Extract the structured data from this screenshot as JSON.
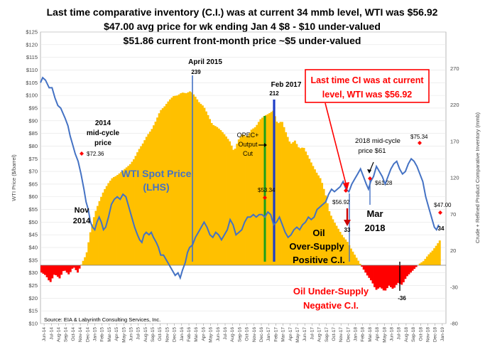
{
  "titles": {
    "line1": "Last time comparative inventory (C.I.) was at current  34 mmb level, WTI was $56.92",
    "line2": "$47.00 avg price for wk ending Jan 4 $8 - $10 under-valued",
    "line3": "$51.86 current front-month price ~$5 under-valued"
  },
  "chart_data": {
    "type": "bar+line",
    "source": "Source:  EIA & Labyrinth Consulting  Services, Inc.",
    "y_left": {
      "label": "WTI Price ($/barrel)",
      "range": [
        10,
        125
      ],
      "ticks": [
        "$10",
        "$15",
        "$20",
        "$25",
        "$30",
        "$35",
        "$40",
        "$45",
        "$50",
        "$55",
        "$60",
        "$65",
        "$70",
        "$75",
        "$80",
        "$85",
        "$90",
        "$95",
        "$100",
        "$105",
        "$110",
        "$115",
        "$120",
        "$125"
      ]
    },
    "y_right": {
      "label": "Crude + Refined Product  Comparative Inventory (mmb)",
      "range": [
        -80,
        320
      ],
      "ticks": [
        "-80",
        "-30",
        "20",
        "70",
        "120",
        "170",
        "220",
        "270"
      ]
    },
    "x_ticks": [
      "Jun-14",
      "Jul-14",
      "Aug-14",
      "Sep-14",
      "Oct-14",
      "Nov-14",
      "Dec-14",
      "Jan-15",
      "Feb-15",
      "Mar-15",
      "Apr-15",
      "May-15",
      "Jun-15",
      "Jul-15",
      "Aug-15",
      "Sep-15",
      "Oct-15",
      "Nov-15",
      "Dec-15",
      "Jan-16",
      "Feb-16",
      "Mar-16",
      "Apr-16",
      "May-16",
      "Jun-16",
      "Jul-16",
      "Aug-16",
      "Sep-16",
      "Oct-16",
      "Nov-16",
      "Dec-16",
      "Jan-17",
      "Feb-17",
      "Mar-17",
      "Apr-17",
      "May-17",
      "Jun-17",
      "Jul-17",
      "Aug-17",
      "Sep-17",
      "Oct-17",
      "Nov-17",
      "Dec-17",
      "Jan-18",
      "Feb-18",
      "Mar-18",
      "Apr-18",
      "May-18",
      "Jun-18",
      "Jul-18",
      "Aug-18",
      "Sep-18",
      "Oct-18",
      "Nov-18",
      "Dec-18",
      "Jan-19"
    ],
    "series": [
      {
        "name": "Comparative Inventory",
        "axis": "right",
        "color": "#ffc000",
        "negative_color": "#ff0000",
        "key_points": [
          [
            0,
            -10
          ],
          [
            0.6,
            -14
          ],
          [
            1.2,
            -24
          ],
          [
            1.8,
            -12
          ],
          [
            2.5,
            -18
          ],
          [
            3.1,
            -6
          ],
          [
            3.8,
            -13
          ],
          [
            4.4,
            -2
          ],
          [
            5.0,
            -10
          ],
          [
            5.6,
            3
          ],
          [
            6.2,
            15
          ],
          [
            6.8,
            48
          ],
          [
            7.4,
            72
          ],
          [
            8.0,
            88
          ],
          [
            8.6,
            102
          ],
          [
            9.2,
            112
          ],
          [
            9.8,
            120
          ],
          [
            10.4,
            123
          ],
          [
            11.0,
            128
          ],
          [
            11.6,
            133
          ],
          [
            12.2,
            138
          ],
          [
            12.8,
            146
          ],
          [
            13.4,
            158
          ],
          [
            14.0,
            167
          ],
          [
            14.6,
            178
          ],
          [
            15.2,
            186
          ],
          [
            15.8,
            198
          ],
          [
            16.4,
            212
          ],
          [
            17.0,
            218
          ],
          [
            17.6,
            226
          ],
          [
            18.2,
            232
          ],
          [
            18.8,
            233
          ],
          [
            19.4,
            237
          ],
          [
            20.0,
            236
          ],
          [
            20.6,
            239
          ],
          [
            21.2,
            232
          ],
          [
            21.8,
            223
          ],
          [
            22.4,
            218
          ],
          [
            23.0,
            206
          ],
          [
            23.6,
            193
          ],
          [
            24.2,
            190
          ],
          [
            24.8,
            185
          ],
          [
            25.4,
            178
          ],
          [
            26.0,
            170
          ],
          [
            26.6,
            156
          ],
          [
            27.2,
            172
          ],
          [
            27.8,
            180
          ],
          [
            28.4,
            176
          ],
          [
            29.0,
            186
          ],
          [
            29.6,
            190
          ],
          [
            30.2,
            200
          ],
          [
            30.8,
            205
          ],
          [
            31.4,
            208
          ],
          [
            32.0,
            212
          ],
          [
            32.6,
            194
          ],
          [
            33.2,
            198
          ],
          [
            33.8,
            181
          ],
          [
            34.4,
            166
          ],
          [
            35.0,
            171
          ],
          [
            35.6,
            160
          ],
          [
            36.2,
            162
          ],
          [
            36.8,
            150
          ],
          [
            37.4,
            138
          ],
          [
            38.0,
            127
          ],
          [
            38.6,
            118
          ],
          [
            39.2,
            98
          ],
          [
            39.8,
            72
          ],
          [
            40.4,
            60
          ],
          [
            41.0,
            50
          ],
          [
            41.6,
            40
          ],
          [
            42.2,
            33
          ],
          [
            42.8,
            22
          ],
          [
            43.4,
            12
          ],
          [
            44.0,
            2
          ],
          [
            44.5,
            -6
          ],
          [
            45.0,
            -14
          ],
          [
            45.6,
            -22
          ],
          [
            46.2,
            -34
          ],
          [
            46.8,
            -30
          ],
          [
            47.4,
            -36
          ],
          [
            48.0,
            -28
          ],
          [
            48.6,
            -33
          ],
          [
            49.2,
            -24
          ],
          [
            49.8,
            -27
          ],
          [
            50.4,
            -16
          ],
          [
            51.0,
            -10
          ],
          [
            51.6,
            -4
          ],
          [
            52.2,
            2
          ],
          [
            52.8,
            6
          ],
          [
            53.4,
            14
          ],
          [
            54.0,
            20
          ],
          [
            54.6,
            28
          ],
          [
            55.0,
            34
          ]
        ]
      },
      {
        "name": "WTI Spot Price (LHS)",
        "axis": "left",
        "color": "#4472c4",
        "key_points": [
          [
            0,
            105
          ],
          [
            0.3,
            107
          ],
          [
            0.7,
            106
          ],
          [
            1.2,
            103
          ],
          [
            1.6,
            103
          ],
          [
            2.0,
            99
          ],
          [
            2.4,
            96
          ],
          [
            2.8,
            95
          ],
          [
            3.1,
            93
          ],
          [
            3.4,
            91
          ],
          [
            3.8,
            88
          ],
          [
            4.1,
            84
          ],
          [
            4.5,
            80
          ],
          [
            4.8,
            77
          ],
          [
            5.2,
            74
          ],
          [
            5.6,
            69
          ],
          [
            6.0,
            63
          ],
          [
            6.3,
            58
          ],
          [
            6.6,
            55
          ],
          [
            6.9,
            50
          ],
          [
            7.2,
            48
          ],
          [
            7.5,
            47
          ],
          [
            7.8,
            50
          ],
          [
            8.1,
            52
          ],
          [
            8.4,
            50
          ],
          [
            8.7,
            47
          ],
          [
            9.0,
            48
          ],
          [
            9.4,
            52
          ],
          [
            9.8,
            57
          ],
          [
            10.2,
            59
          ],
          [
            10.6,
            60
          ],
          [
            11.0,
            59
          ],
          [
            11.4,
            61
          ],
          [
            11.8,
            60
          ],
          [
            12.2,
            56
          ],
          [
            12.6,
            52
          ],
          [
            13.0,
            48
          ],
          [
            13.4,
            45
          ],
          [
            13.7,
            43
          ],
          [
            14.0,
            42
          ],
          [
            14.3,
            45
          ],
          [
            14.6,
            46
          ],
          [
            15.0,
            45
          ],
          [
            15.3,
            46
          ],
          [
            15.6,
            44
          ],
          [
            16.0,
            42
          ],
          [
            16.3,
            40
          ],
          [
            16.6,
            37
          ],
          [
            17.0,
            37
          ],
          [
            17.4,
            35
          ],
          [
            17.8,
            33
          ],
          [
            18.2,
            31
          ],
          [
            18.6,
            29
          ],
          [
            19.0,
            30
          ],
          [
            19.3,
            28
          ],
          [
            19.6,
            31
          ],
          [
            20.0,
            34
          ],
          [
            20.3,
            38
          ],
          [
            20.6,
            40
          ],
          [
            21.0,
            41
          ],
          [
            21.4,
            44
          ],
          [
            21.8,
            46
          ],
          [
            22.2,
            48
          ],
          [
            22.6,
            50
          ],
          [
            23.0,
            48
          ],
          [
            23.4,
            45
          ],
          [
            23.8,
            44
          ],
          [
            24.2,
            46
          ],
          [
            24.6,
            45
          ],
          [
            25.0,
            43
          ],
          [
            25.4,
            45
          ],
          [
            25.8,
            47
          ],
          [
            26.2,
            51
          ],
          [
            26.6,
            49
          ],
          [
            27.0,
            45
          ],
          [
            27.4,
            46
          ],
          [
            27.8,
            47
          ],
          [
            28.2,
            50
          ],
          [
            28.6,
            52
          ],
          [
            29.0,
            52
          ],
          [
            29.4,
            53
          ],
          [
            29.8,
            52
          ],
          [
            30.2,
            53
          ],
          [
            30.6,
            53
          ],
          [
            31.0,
            52
          ],
          [
            31.4,
            54
          ],
          [
            31.8,
            53
          ],
          [
            32.2,
            49
          ],
          [
            32.6,
            50
          ],
          [
            33.0,
            52
          ],
          [
            33.4,
            49
          ],
          [
            33.8,
            46
          ],
          [
            34.2,
            44
          ],
          [
            34.6,
            45
          ],
          [
            35.0,
            47
          ],
          [
            35.4,
            48
          ],
          [
            35.8,
            47
          ],
          [
            36.2,
            49
          ],
          [
            36.6,
            50
          ],
          [
            37.0,
            52
          ],
          [
            37.4,
            51
          ],
          [
            37.8,
            52
          ],
          [
            38.2,
            55
          ],
          [
            38.6,
            56
          ],
          [
            39.0,
            57
          ],
          [
            39.4,
            58
          ],
          [
            39.8,
            61
          ],
          [
            40.2,
            63
          ],
          [
            40.6,
            62
          ],
          [
            41.0,
            63
          ],
          [
            41.4,
            64
          ],
          [
            41.8,
            66
          ],
          [
            42.2,
            63
          ],
          [
            42.6,
            62
          ],
          [
            43.0,
            65
          ],
          [
            43.4,
            67
          ],
          [
            43.8,
            69
          ],
          [
            44.2,
            71
          ],
          [
            44.6,
            68
          ],
          [
            45.0,
            65
          ],
          [
            45.3,
            63
          ],
          [
            45.6,
            66
          ],
          [
            46.0,
            68
          ],
          [
            46.4,
            72
          ],
          [
            46.8,
            70
          ],
          [
            47.2,
            68
          ],
          [
            47.6,
            65
          ],
          [
            48.0,
            68
          ],
          [
            48.4,
            71
          ],
          [
            48.8,
            73
          ],
          [
            49.2,
            74
          ],
          [
            49.6,
            71
          ],
          [
            50.0,
            69
          ],
          [
            50.4,
            70
          ],
          [
            50.8,
            73
          ],
          [
            51.2,
            75
          ],
          [
            51.6,
            74
          ],
          [
            52.0,
            72
          ],
          [
            52.4,
            69
          ],
          [
            52.8,
            66
          ],
          [
            53.2,
            60
          ],
          [
            53.6,
            56
          ],
          [
            54.0,
            52
          ],
          [
            54.4,
            48
          ],
          [
            54.7,
            47
          ],
          [
            55.0,
            49
          ]
        ]
      }
    ],
    "markers": [
      {
        "label": "April 2015",
        "value": "239",
        "color": "#4472c4"
      },
      {
        "label": "Feb 2017",
        "value": "212",
        "color": "#1f3ec8"
      },
      {
        "label": "OPEC+ Output Cut",
        "color": "#1aa01a"
      },
      {
        "label": "Mar 2018",
        "color": "#4472c4"
      }
    ],
    "annotations": {
      "wti_label": "WTI Spot Price",
      "wti_label2": "(LHS)",
      "midcycle_2014": [
        "2014",
        "mid-cycle",
        "price"
      ],
      "price_7236": "$72.36",
      "nov_2014": [
        "Nov",
        "2014"
      ],
      "opec": [
        "OPEC+",
        "Output",
        "Cut"
      ],
      "price_5334": "$53.34",
      "price_5692": "$56.92",
      "ci_33": "33",
      "callout": [
        "Last time CI was at current",
        "level, WTI was $56.92"
      ],
      "midcycle_2018": [
        "2018 mid-cycle",
        "price $61"
      ],
      "price_6128": "$61.28",
      "mar_2018": [
        "Mar",
        "2018"
      ],
      "price_7534": "$75.34",
      "price_4700": "$47.00",
      "ci_34": "34",
      "ci_m36": "-36",
      "oversupply": [
        "Oil",
        "Over-Supply",
        "Positive C.I."
      ],
      "undersupply": [
        "Oil Under-Supply",
        "Negative C.I."
      ]
    }
  }
}
